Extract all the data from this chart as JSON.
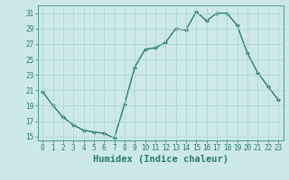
{
  "xlabel": "Humidex (Indice chaleur)",
  "x": [
    0,
    1,
    2,
    3,
    4,
    5,
    6,
    7,
    8,
    9,
    10,
    11,
    12,
    13,
    14,
    15,
    16,
    17,
    18,
    19,
    20,
    21,
    22,
    23
  ],
  "y": [
    20.8,
    19.0,
    17.5,
    16.5,
    15.8,
    15.6,
    15.4,
    14.8,
    19.2,
    24.0,
    26.3,
    26.5,
    27.2,
    29.0,
    28.8,
    31.2,
    30.0,
    31.0,
    31.0,
    29.4,
    25.8,
    23.3,
    21.5,
    19.8
  ],
  "line_color": "#2a7a6e",
  "marker": "D",
  "markersize": 2.0,
  "linewidth": 1.0,
  "bg_color": "#cce9e8",
  "grid_color": "#a8d4d2",
  "ylim": [
    14.5,
    32
  ],
  "yticks": [
    15,
    17,
    19,
    21,
    23,
    25,
    27,
    29,
    31
  ],
  "xticks": [
    0,
    1,
    2,
    3,
    4,
    5,
    6,
    7,
    8,
    9,
    10,
    11,
    12,
    13,
    14,
    15,
    16,
    17,
    18,
    19,
    20,
    21,
    22,
    23
  ],
  "tick_fontsize": 5.5,
  "xlabel_fontsize": 7.5,
  "tick_color": "#2a7a6e",
  "spine_color": "#4a9a8e"
}
